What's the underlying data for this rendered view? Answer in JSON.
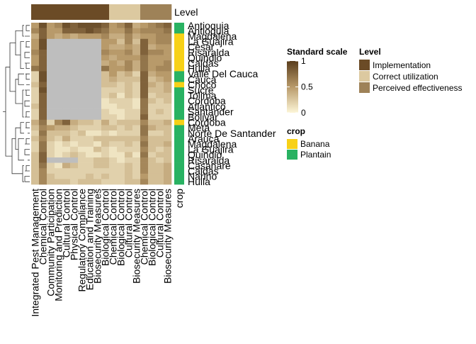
{
  "chart_data": {
    "type": "heatmap",
    "title": "",
    "row_labels": [
      "Antioquia",
      "Antioquia",
      "Magdalena",
      "La Guajira",
      "Cesar",
      "Risaralda",
      "Quindio",
      "Caldas",
      "Huila",
      "Valle Del Cauca",
      "Cauca",
      "Choco",
      "Sucre",
      "Tolima",
      "Cordoba",
      "Atlantico",
      "Santander",
      "Bolivar",
      "Cordoba",
      "Meta",
      "Norte De Santander",
      "Arauca",
      "Magdalena",
      "La Guajira",
      "Quindio",
      "Risaralda",
      "Casanare",
      "Caldas",
      "Narino",
      "Huila"
    ],
    "column_labels": [
      "Integrated Pest Management",
      "Chemical Control",
      "Community Participation",
      "Monitoring and Prediction",
      "Cultural Control",
      "Physical Control",
      "Regulatory Compliance",
      "Education and Training",
      "Biosecurity Measures",
      "Biological Control",
      "Chemical Control",
      "Biological Control",
      "Cultural Control",
      "Biosecurity Measures",
      "Chemical Control",
      "Biological Control",
      "Cultural Control",
      "Biosecurity Measures"
    ],
    "column_level": [
      "Implementation",
      "Implementation",
      "Implementation",
      "Implementation",
      "Implementation",
      "Implementation",
      "Implementation",
      "Implementation",
      "Implementation",
      "Implementation",
      "Correct utilization",
      "Correct utilization",
      "Correct utilization",
      "Correct utilization",
      "Perceived effectiveness",
      "Perceived effectiveness",
      "Perceived effectiveness",
      "Perceived effectiveness"
    ],
    "row_crop": [
      "Plantain",
      "Plantain",
      "Banana",
      "Banana",
      "Banana",
      "Banana",
      "Banana",
      "Banana",
      "Banana",
      "Plantain",
      "Plantain",
      "Banana",
      "Plantain",
      "Plantain",
      "Plantain",
      "Plantain",
      "Plantain",
      "Plantain",
      "Banana",
      "Plantain",
      "Plantain",
      "Plantain",
      "Plantain",
      "Plantain",
      "Plantain",
      "Plantain",
      "Plantain",
      "Plantain",
      "Plantain",
      "Plantain"
    ],
    "values": [
      [
        0.5,
        0.9,
        0.5,
        0.6,
        0.9,
        0.8,
        0.9,
        0.9,
        0.9,
        0.8,
        0.5,
        0.6,
        0.8,
        0.4,
        0.5,
        0.6,
        0.7,
        0.8
      ],
      [
        0.6,
        0.8,
        0.5,
        0.5,
        0.8,
        0.8,
        0.8,
        0.9,
        0.8,
        0.7,
        0.5,
        0.5,
        0.7,
        0.5,
        0.6,
        0.6,
        0.6,
        0.7
      ],
      [
        0.4,
        0.8,
        0.5,
        0.4,
        0.5,
        0.4,
        0.5,
        0.5,
        0.5,
        0.6,
        0.4,
        0.4,
        0.6,
        0.4,
        0.5,
        0.5,
        0.6,
        0.6
      ],
      [
        0.5,
        0.9,
        null,
        null,
        null,
        null,
        null,
        null,
        null,
        0.5,
        0.5,
        0.3,
        0.6,
        0.3,
        0.8,
        0.5,
        0.6,
        0.6
      ],
      [
        0.5,
        0.9,
        null,
        null,
        null,
        null,
        null,
        null,
        null,
        0.5,
        0.4,
        0.4,
        0.5,
        0.4,
        0.8,
        0.4,
        0.5,
        0.5
      ],
      [
        0.6,
        0.8,
        null,
        null,
        null,
        null,
        null,
        null,
        null,
        0.6,
        0.5,
        0.5,
        0.6,
        0.4,
        0.8,
        0.6,
        0.6,
        0.5
      ],
      [
        0.5,
        0.8,
        null,
        null,
        null,
        null,
        null,
        null,
        null,
        0.5,
        0.4,
        0.5,
        0.5,
        0.5,
        0.7,
        0.5,
        0.5,
        0.5
      ],
      [
        0.5,
        0.8,
        null,
        null,
        null,
        null,
        null,
        null,
        null,
        0.4,
        0.5,
        0.4,
        0.6,
        0.4,
        0.7,
        0.5,
        0.5,
        0.6
      ],
      [
        0.7,
        0.8,
        null,
        null,
        null,
        null,
        null,
        null,
        null,
        0.7,
        0.5,
        0.5,
        0.6,
        0.4,
        0.7,
        0.5,
        0.6,
        0.6
      ],
      [
        0.2,
        0.9,
        null,
        null,
        null,
        null,
        null,
        null,
        null,
        0.3,
        0.5,
        0.3,
        0.4,
        0.2,
        0.8,
        0.4,
        0.5,
        0.5
      ],
      [
        0.2,
        0.9,
        null,
        null,
        null,
        null,
        null,
        null,
        null,
        0.3,
        0.4,
        0.3,
        0.3,
        0.3,
        0.8,
        0.3,
        0.4,
        0.5
      ],
      [
        0.3,
        0.8,
        null,
        null,
        null,
        null,
        null,
        null,
        null,
        0.3,
        0.3,
        0.2,
        0.3,
        0.2,
        0.8,
        0.4,
        0.3,
        0.4
      ],
      [
        0.2,
        0.9,
        null,
        null,
        null,
        null,
        null,
        null,
        null,
        0.2,
        0.2,
        0.2,
        0.3,
        0.2,
        0.8,
        0.3,
        0.3,
        0.4
      ],
      [
        0.2,
        0.8,
        null,
        null,
        null,
        null,
        null,
        null,
        null,
        0.2,
        0.3,
        0.1,
        0.3,
        0.2,
        0.8,
        0.2,
        0.3,
        0.3
      ],
      [
        0.2,
        0.8,
        null,
        null,
        null,
        null,
        null,
        null,
        null,
        0.1,
        0.2,
        0.2,
        0.2,
        0.1,
        0.7,
        0.3,
        0.2,
        0.3
      ],
      [
        0.3,
        0.8,
        null,
        null,
        null,
        null,
        null,
        null,
        null,
        0.1,
        0.1,
        0.2,
        0.2,
        0.1,
        0.7,
        0.2,
        0.2,
        0.2
      ],
      [
        0.2,
        0.8,
        null,
        null,
        null,
        null,
        null,
        null,
        null,
        0.2,
        0.1,
        0.1,
        0.2,
        0.2,
        0.7,
        0.2,
        0.3,
        0.2
      ],
      [
        0.2,
        0.8,
        null,
        null,
        null,
        null,
        null,
        null,
        null,
        0.2,
        0.2,
        0.1,
        0.2,
        0.2,
        0.8,
        0.2,
        0.2,
        0.2
      ],
      [
        0.4,
        0.7,
        0.2,
        0.6,
        0.8,
        0.4,
        0.3,
        0.3,
        0.2,
        0.4,
        0.2,
        0.3,
        0.3,
        0.3,
        0.6,
        0.3,
        0.3,
        0.4
      ],
      [
        0.3,
        0.6,
        0.5,
        0.4,
        0.4,
        0.3,
        0.2,
        0.2,
        0.2,
        0.3,
        0.3,
        0.2,
        0.3,
        0.2,
        0.7,
        0.4,
        0.3,
        0.3
      ],
      [
        0.2,
        0.7,
        0.3,
        0.3,
        0.3,
        0.2,
        0.3,
        0.1,
        0.1,
        0.2,
        0.1,
        0.2,
        0.2,
        0.2,
        0.7,
        0.2,
        0.2,
        0.3
      ],
      [
        0.3,
        0.6,
        0.3,
        0.2,
        0.4,
        0.2,
        0.2,
        0.2,
        0.3,
        0.3,
        0.3,
        0.3,
        0.3,
        0.3,
        0.6,
        0.3,
        0.3,
        0.3
      ],
      [
        0.2,
        0.7,
        0.2,
        0.1,
        0.2,
        0.1,
        0.2,
        0.2,
        0.1,
        0.3,
        0.2,
        0.2,
        0.3,
        0.2,
        0.7,
        0.3,
        0.3,
        0.4
      ],
      [
        0.2,
        0.7,
        0.2,
        0.1,
        0.1,
        0.2,
        0.1,
        0.1,
        0.3,
        0.2,
        0.1,
        0.2,
        0.2,
        0.2,
        0.6,
        0.3,
        0.2,
        0.3
      ],
      [
        0.3,
        0.8,
        0.2,
        0.1,
        0.2,
        0.3,
        0.2,
        0.1,
        0.1,
        0.2,
        0.1,
        0.1,
        0.3,
        0.1,
        0.7,
        0.2,
        0.3,
        0.3
      ],
      [
        0.3,
        0.8,
        null,
        null,
        null,
        null,
        0.2,
        0.2,
        0.3,
        0.3,
        0.2,
        0.1,
        0.2,
        0.2,
        0.6,
        0.3,
        0.2,
        0.3
      ],
      [
        0.3,
        0.7,
        0.2,
        0.1,
        0.4,
        0.3,
        0.2,
        0.2,
        0.3,
        0.3,
        0.2,
        0.2,
        0.3,
        0.2,
        0.6,
        0.3,
        0.3,
        0.4
      ],
      [
        0.3,
        0.6,
        0.2,
        0.2,
        0.2,
        0.2,
        0.2,
        0.2,
        0.2,
        0.2,
        0.2,
        0.2,
        0.3,
        0.2,
        0.6,
        0.3,
        0.3,
        0.4
      ],
      [
        0.3,
        0.6,
        0.3,
        0.2,
        0.2,
        0.2,
        0.2,
        0.3,
        0.2,
        0.3,
        0.2,
        0.2,
        0.3,
        0.2,
        0.5,
        0.3,
        0.3,
        0.4
      ],
      [
        0.3,
        0.6,
        0.3,
        0.3,
        0.3,
        0.2,
        0.3,
        0.3,
        0.3,
        0.2,
        0.2,
        0.2,
        0.3,
        0.3,
        0.6,
        0.3,
        0.3,
        0.4
      ]
    ],
    "color_scale": {
      "min": 0,
      "max": 1,
      "low_color": "#fdf6d8",
      "high_color": "#5a3d1c",
      "na_color": "#bebebe"
    },
    "legends": {
      "scale": {
        "title": "Standard scale",
        "ticks": [
          "1",
          "0.5",
          "0"
        ]
      },
      "level": {
        "title": "Level",
        "items": [
          {
            "label": "Implementation",
            "color": "#6b4b26"
          },
          {
            "label": "Correct utilization",
            "color": "#dcc9a0"
          },
          {
            "label": "Perceived effectiveness",
            "color": "#9e8258"
          }
        ]
      },
      "crop": {
        "title": "crop",
        "items": [
          {
            "label": "Banana",
            "color": "#f7d117"
          },
          {
            "label": "Plantain",
            "color": "#29b262"
          }
        ]
      }
    },
    "annotation_labels": {
      "column": "Level",
      "row": "crop"
    },
    "legend_placement": "right",
    "row_dendrogram": "left"
  }
}
